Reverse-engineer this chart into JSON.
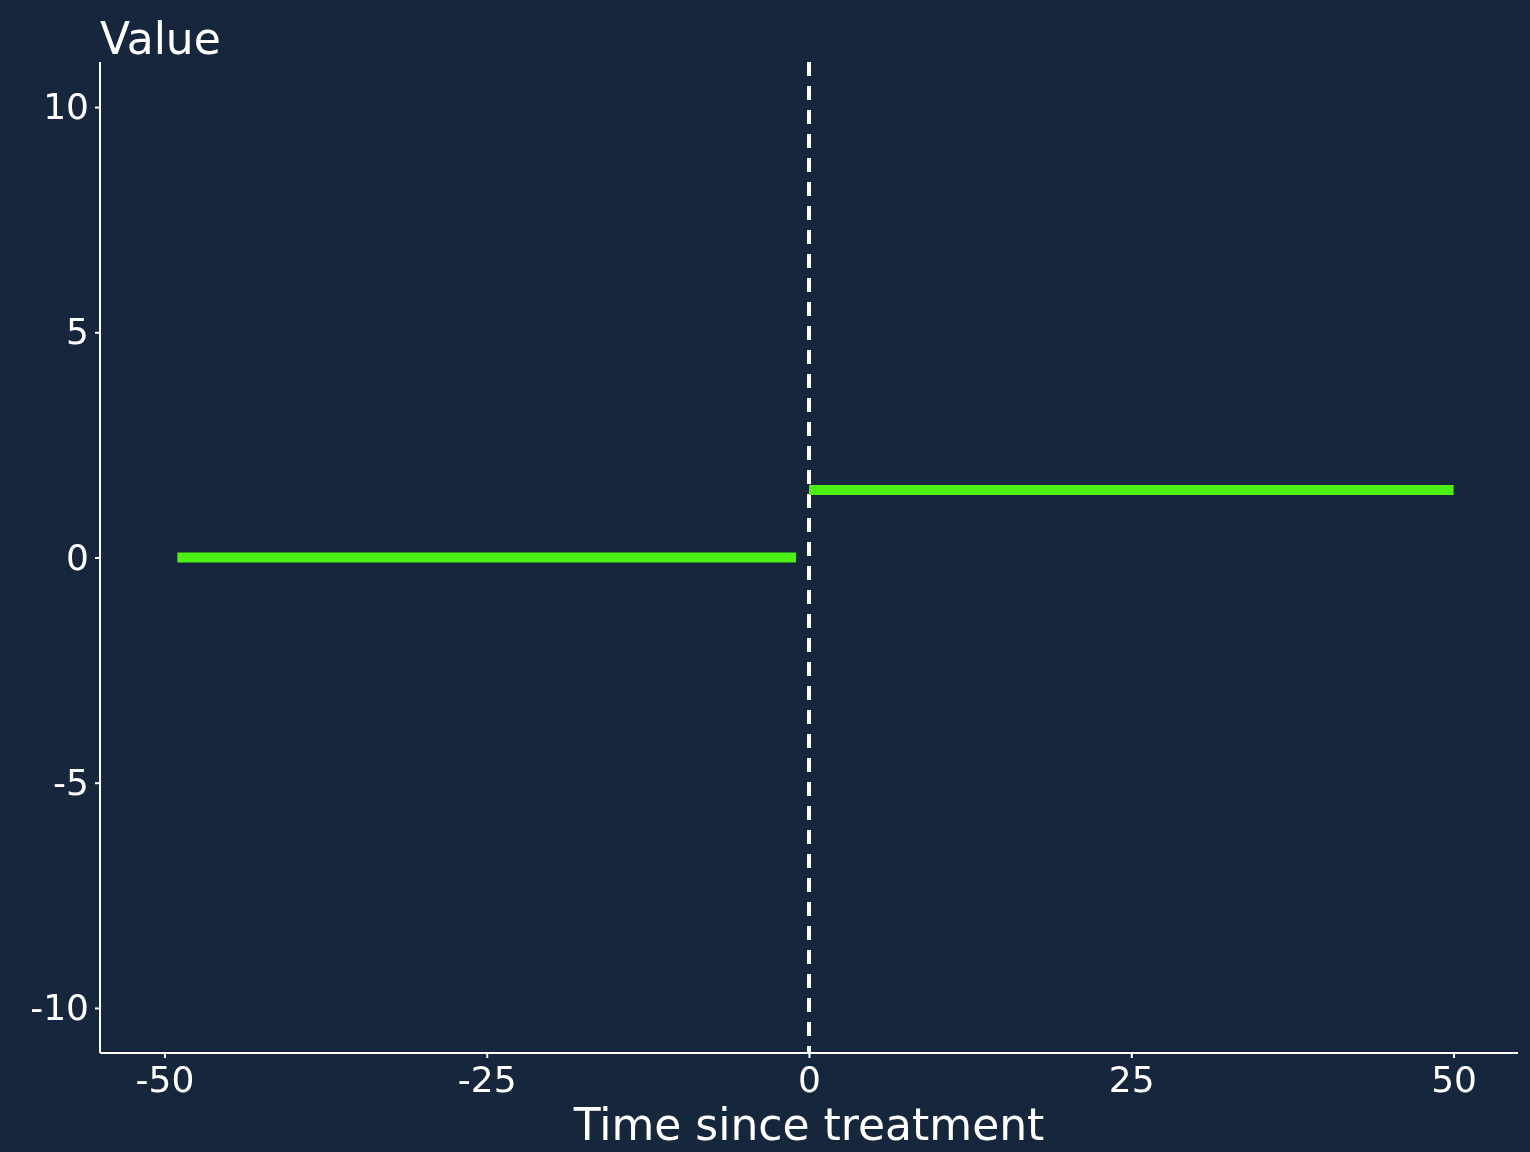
{
  "chart_data": {
    "type": "line",
    "ylabel": "Value",
    "xlabel": "Time since treatment",
    "xlim": [
      -55,
      55
    ],
    "ylim": [
      -11,
      11
    ],
    "xticks": [
      -50,
      -25,
      0,
      25,
      50
    ],
    "yticks": [
      -10,
      -5,
      0,
      5,
      10
    ],
    "grid": false,
    "line_style": "solid",
    "marker": "none",
    "series": [
      {
        "color": "#4cf013",
        "x": [
          -49,
          -1
        ],
        "values": [
          0,
          0
        ]
      },
      {
        "color": "#4cf013",
        "x": [
          0,
          50
        ],
        "values": [
          1.5,
          1.5
        ]
      }
    ],
    "ref_lines": [
      {
        "axis": "x",
        "value": 0,
        "color": "#ffffff",
        "line_style": "dashed"
      }
    ]
  }
}
